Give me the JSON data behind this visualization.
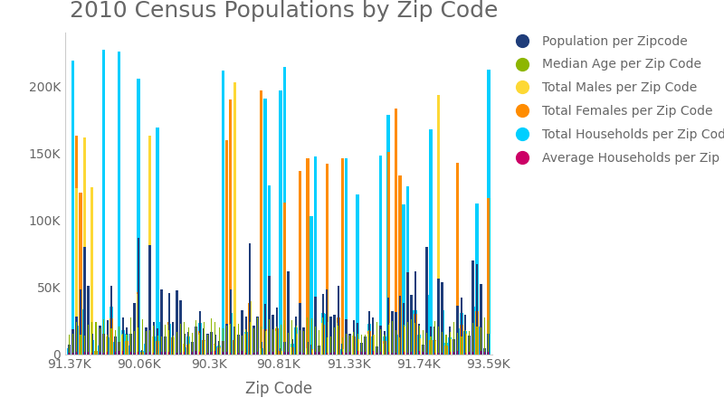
{
  "title": "2010 Census Populations by Zip Code",
  "xlabel": "Zip Code",
  "xtick_labels": [
    "91.37K",
    "90.06K",
    "90.3K",
    "90.81K",
    "91.33K",
    "91.74K",
    "93.59K"
  ],
  "ytick_labels": [
    "0",
    "50K",
    "100K",
    "150K",
    "200K"
  ],
  "ytick_values": [
    0,
    50000,
    100000,
    150000,
    200000
  ],
  "ylim": [
    0,
    240000
  ],
  "legend_labels": [
    "Population per Zipcode",
    "Median Age per Zip Code",
    "Total Males per Zip Code",
    "Total Females per Zip Code",
    "Total Households per Zip Code",
    "Average Households per Zip Code"
  ],
  "colors": {
    "population": "#1f3d7a",
    "median_age": "#8db600",
    "total_males": "#fdd835",
    "total_females": "#ff8c00",
    "total_households": "#00cfff",
    "avg_households": "#cc0066"
  },
  "n_bars": 110,
  "background_color": "#ffffff",
  "title_fontsize": 18,
  "axis_label_fontsize": 12,
  "tick_fontsize": 10,
  "legend_fontsize": 10,
  "legend_dot_size": 120,
  "bar_width": 0.85,
  "spine_color": "#cccccc",
  "text_color": "#666666"
}
